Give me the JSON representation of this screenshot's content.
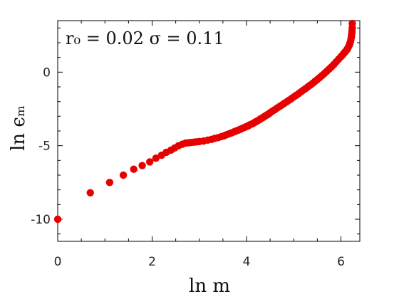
{
  "chart_data": {
    "type": "scatter",
    "title": "",
    "annotation": "r₀ = 0.02  σ = 0.11",
    "xlabel": "ln m",
    "ylabel": "ln ϵₘ",
    "xlim": [
      0,
      6.4
    ],
    "ylim": [
      -11.5,
      3.5
    ],
    "xticks": [
      0,
      2,
      4,
      6
    ],
    "xtick_labels": [
      "0",
      "2",
      "4",
      "6"
    ],
    "yticks": [
      0,
      -5,
      -10
    ],
    "ytick_labels": [
      "0",
      "-5",
      "-10"
    ],
    "grid": false,
    "marker_color": "#e60000",
    "series": [
      {
        "x": [
          0,
          0.69,
          1.1,
          1.39,
          1.61,
          1.79,
          1.95,
          2.08,
          2.2,
          2.3,
          2.4,
          2.48,
          2.56,
          2.64,
          2.71,
          2.77,
          2.83,
          2.89,
          2.94,
          3.0,
          3.09,
          3.18,
          3.26,
          3.33,
          3.4,
          3.47,
          3.53,
          3.58,
          3.64,
          3.69,
          3.74,
          3.78,
          3.83,
          3.87,
          3.91,
          3.95,
          3.99,
          4.03,
          4.06,
          4.09,
          4.13,
          4.16,
          4.19,
          4.22,
          4.25,
          4.28,
          4.3,
          4.33,
          4.36,
          4.38,
          4.41,
          4.43,
          4.46,
          4.48,
          4.5,
          4.55,
          4.6,
          4.65,
          4.7,
          4.75,
          4.8,
          4.85,
          4.9,
          4.95,
          5.0,
          5.05,
          5.1,
          5.15,
          5.2,
          5.25,
          5.3,
          5.35,
          5.4,
          5.45,
          5.5,
          5.55,
          5.6,
          5.65,
          5.7,
          5.75,
          5.8,
          5.85,
          5.9,
          5.95,
          6.0,
          6.03,
          6.06,
          6.09,
          6.12,
          6.14,
          6.16,
          6.18,
          6.19,
          6.2,
          6.21,
          6.22,
          6.225,
          6.23,
          6.235,
          6.24,
          6.24,
          6.24,
          6.24,
          6.24
        ],
        "y": [
          -10.0,
          -8.2,
          -7.5,
          -7.0,
          -6.6,
          -6.35,
          -6.1,
          -5.85,
          -5.65,
          -5.45,
          -5.3,
          -5.15,
          -5.0,
          -4.9,
          -4.82,
          -4.8,
          -4.78,
          -4.76,
          -4.74,
          -4.72,
          -4.68,
          -4.62,
          -4.57,
          -4.5,
          -4.45,
          -4.38,
          -4.32,
          -4.25,
          -4.18,
          -4.12,
          -4.05,
          -4.0,
          -3.94,
          -3.88,
          -3.82,
          -3.77,
          -3.71,
          -3.66,
          -3.6,
          -3.55,
          -3.5,
          -3.44,
          -3.38,
          -3.33,
          -3.28,
          -3.22,
          -3.17,
          -3.12,
          -3.06,
          -3.01,
          -2.96,
          -2.91,
          -2.86,
          -2.81,
          -2.76,
          -2.65,
          -2.55,
          -2.44,
          -2.34,
          -2.23,
          -2.12,
          -2.02,
          -1.91,
          -1.8,
          -1.69,
          -1.58,
          -1.47,
          -1.35,
          -1.23,
          -1.12,
          -1.0,
          -0.88,
          -0.76,
          -0.63,
          -0.5,
          -0.37,
          -0.23,
          -0.09,
          0.06,
          0.21,
          0.36,
          0.52,
          0.7,
          0.88,
          1.05,
          1.15,
          1.27,
          1.38,
          1.5,
          1.6,
          1.72,
          1.85,
          1.95,
          2.05,
          2.2,
          2.35,
          2.5,
          2.65,
          2.8,
          3.0,
          3.3,
          3.6,
          4.1,
          5.0
        ]
      }
    ]
  }
}
